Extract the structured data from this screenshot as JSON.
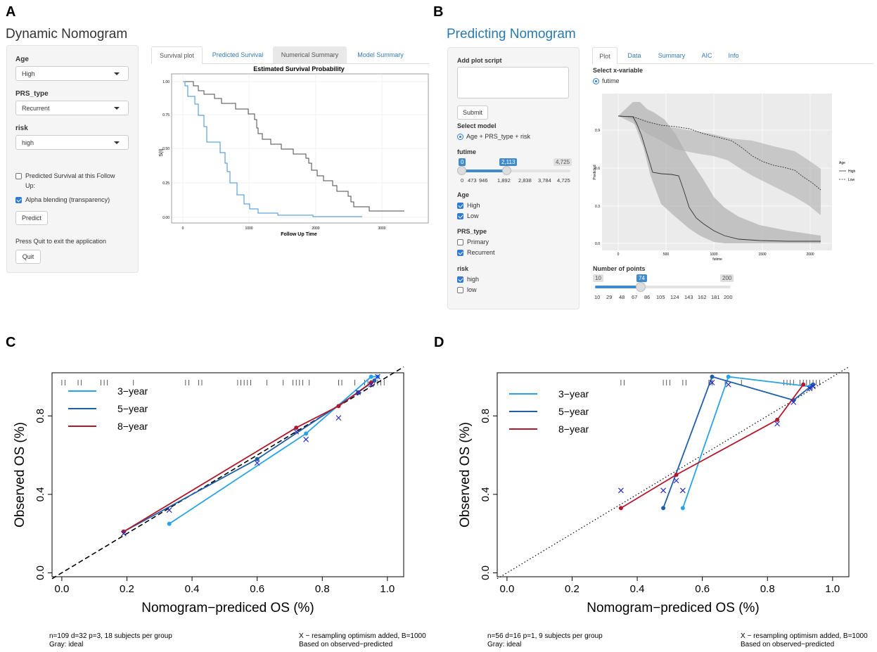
{
  "panels": {
    "a": "A",
    "b": "B",
    "c": "C",
    "d": "D"
  },
  "dynamic": {
    "title": "Dynamic Nomogram",
    "age_label": "Age",
    "age_value": "High",
    "prs_label": "PRS_type",
    "prs_value": "Recurrent",
    "risk_label": "risk",
    "risk_value": "high",
    "predicted_survival_label_1": "Predicted Survival at this Follow",
    "predicted_survival_label_2": "Up:",
    "alpha_label": "Alpha blending (transparency)",
    "predict_button": "Predict",
    "quit_hint": "Press Quit to exit the application",
    "quit_button": "Quit",
    "tabs": [
      "Survival plot",
      "Predicted Survival",
      "Numerical Summary",
      "Model Summary"
    ],
    "plot_title": "Estimated Survival Probability",
    "x_label": "Follow Up Time",
    "y_label": "S(t)",
    "x_ticks": [
      "0",
      "1000",
      "2000",
      "3000"
    ],
    "y_ticks": [
      "1.00",
      "0.75",
      "0.50",
      "0.25",
      "0.00"
    ]
  },
  "predicting": {
    "title": "Predicting Nomogram",
    "script_label": "Add plot script",
    "submit_button": "Submit",
    "model_label": "Select model",
    "model_option": "Age + PRS_type + risk",
    "futime_label": "futime",
    "futime_min": "0",
    "futime_value": "2,113",
    "futime_max": "4,725",
    "futime_ticks": [
      "0",
      "473",
      "946",
      "1,892",
      "2,838",
      "3,784",
      "4,725"
    ],
    "age_label": "Age",
    "age_high": "High",
    "age_low": "Low",
    "prs_label": "PRS_type",
    "prs_primary": "Primary",
    "prs_recurrent": "Recurrent",
    "risk_label": "risk",
    "risk_high": "high",
    "risk_low": "low",
    "tabs": [
      "Plot",
      "Data",
      "Summary",
      "AIC",
      "Info"
    ],
    "x_var_label": "Select x-variable",
    "x_var_option": "futime",
    "plot_y_label": "Predicted",
    "plot_x_label": "futime",
    "plot_x_ticks": [
      "0",
      "500",
      "1000",
      "1500",
      "2000"
    ],
    "plot_y_ticks": [
      "0.9",
      "0.6",
      "0.3",
      "0.0"
    ],
    "legend_title": "Age",
    "legend_high": "High",
    "legend_low": "Low",
    "points_label": "Number of points",
    "points_min": "10",
    "points_value": "74",
    "points_max": "200",
    "points_ticks": [
      "10",
      "29",
      "48",
      "67",
      "86",
      "105",
      "124",
      "143",
      "162",
      "181",
      "200"
    ]
  },
  "colors": {
    "light_blue": "#29a3e8",
    "dark_blue": "#1f5fa8",
    "red": "#b2182b",
    "cross": "#2222cc"
  },
  "chart_data": [
    {
      "type": "line",
      "panel": "C",
      "title": "",
      "xlabel": "Nomogram−prediced OS (%)",
      "ylabel": "Observed OS (%)",
      "xlim": [
        -0.03,
        1.05
      ],
      "ylim": [
        -0.02,
        1.02
      ],
      "x_ticks": [
        "0.0",
        "0.2",
        "0.4",
        "0.6",
        "0.8",
        "1.0"
      ],
      "y_ticks": [
        "0.0",
        "0.4",
        "0.8"
      ],
      "legend": [
        "3−year",
        "5−year",
        "8−year"
      ],
      "series": [
        {
          "name": "3−year",
          "x": [
            0.33,
            0.75,
            0.95,
            0.97
          ],
          "y": [
            0.25,
            0.71,
            1.0,
            1.0
          ]
        },
        {
          "name": "5−year",
          "x": [
            0.19,
            0.6,
            0.91,
            0.96
          ],
          "y": [
            0.21,
            0.58,
            0.92,
            0.98
          ]
        },
        {
          "name": "8−year",
          "x": [
            0.19,
            0.72,
            0.85,
            0.95
          ],
          "y": [
            0.21,
            0.74,
            0.85,
            0.97
          ]
        }
      ],
      "crosses": {
        "x": [
          0.19,
          0.33,
          0.6,
          0.75,
          0.72,
          0.85,
          0.91,
          0.95,
          0.97
        ],
        "y": [
          0.2,
          0.32,
          0.56,
          0.68,
          0.72,
          0.79,
          0.92,
          0.96,
          1.0
        ]
      },
      "footer_left_1": "n=109 d=32 p=3, 18 subjects per group",
      "footer_left_2": "Gray: ideal",
      "footer_right_1": "X − resampling optimism added, B=1000",
      "footer_right_2": "Based on observed−predicted"
    },
    {
      "type": "line",
      "panel": "D",
      "title": "",
      "xlabel": "Nomogram−prediced OS (%)",
      "ylabel": "Observed OS (%)",
      "xlim": [
        -0.03,
        1.05
      ],
      "ylim": [
        -0.02,
        1.02
      ],
      "x_ticks": [
        "0.0",
        "0.2",
        "0.4",
        "0.6",
        "0.8",
        "1.0"
      ],
      "y_ticks": [
        "0.0",
        "0.4",
        "0.8"
      ],
      "legend": [
        "3−year",
        "5−year",
        "8−year"
      ],
      "series": [
        {
          "name": "3−year",
          "x": [
            0.54,
            0.68,
            0.93,
            0.94
          ],
          "y": [
            0.33,
            1.0,
            0.95,
            0.96
          ]
        },
        {
          "name": "5−year",
          "x": [
            0.48,
            0.63,
            0.88,
            0.94
          ],
          "y": [
            0.33,
            1.0,
            0.88,
            0.96
          ]
        },
        {
          "name": "8−year",
          "x": [
            0.35,
            0.52,
            0.83,
            0.91
          ],
          "y": [
            0.33,
            0.5,
            0.78,
            0.96
          ]
        }
      ],
      "crosses": {
        "x": [
          0.35,
          0.48,
          0.52,
          0.54,
          0.63,
          0.68,
          0.83,
          0.88,
          0.93,
          0.94
        ],
        "y": [
          0.42,
          0.42,
          0.47,
          0.42,
          0.97,
          0.96,
          0.76,
          0.87,
          0.94,
          0.95
        ]
      },
      "footer_left_1": "n=56 d=16 p=1, 9 subjects per group",
      "footer_left_2": "Gray: ideal",
      "footer_right_1": "X − resampling optimism added, B=1000",
      "footer_right_2": "Based on observed−predicted"
    }
  ]
}
